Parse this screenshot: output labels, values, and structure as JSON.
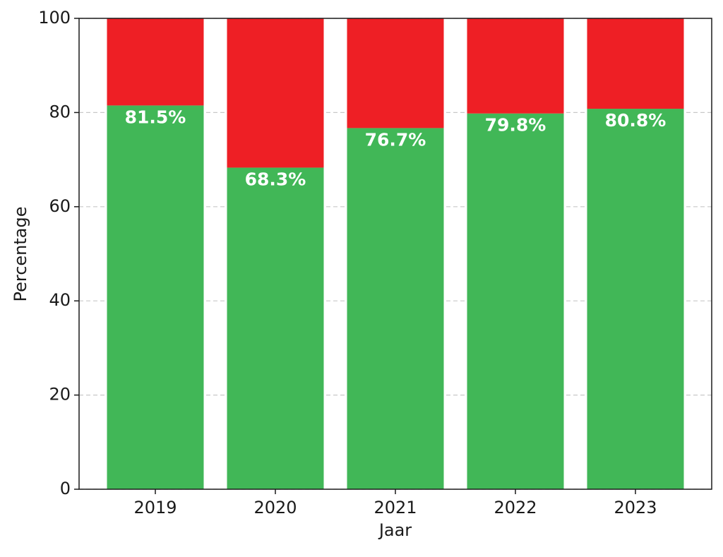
{
  "chart_data": {
    "type": "stacked_bar",
    "x_label": "Jaar",
    "y_label": "Percentage",
    "categories": [
      "2019",
      "2020",
      "2021",
      "2022",
      "2023"
    ],
    "series": [
      {
        "color": "#41b757",
        "values": [
          81.5,
          68.3,
          76.7,
          79.8,
          80.8
        ],
        "value_labels": [
          "81.5%",
          "68.3%",
          "76.7%",
          "79.8%",
          "80.8%"
        ]
      },
      {
        "color": "#ee1f25",
        "values": [
          18.5,
          31.7,
          23.3,
          20.2,
          19.2
        ]
      }
    ],
    "ylim": [
      0,
      100
    ],
    "yticks": [
      0,
      20,
      40,
      60,
      80,
      100
    ],
    "grid": true
  }
}
